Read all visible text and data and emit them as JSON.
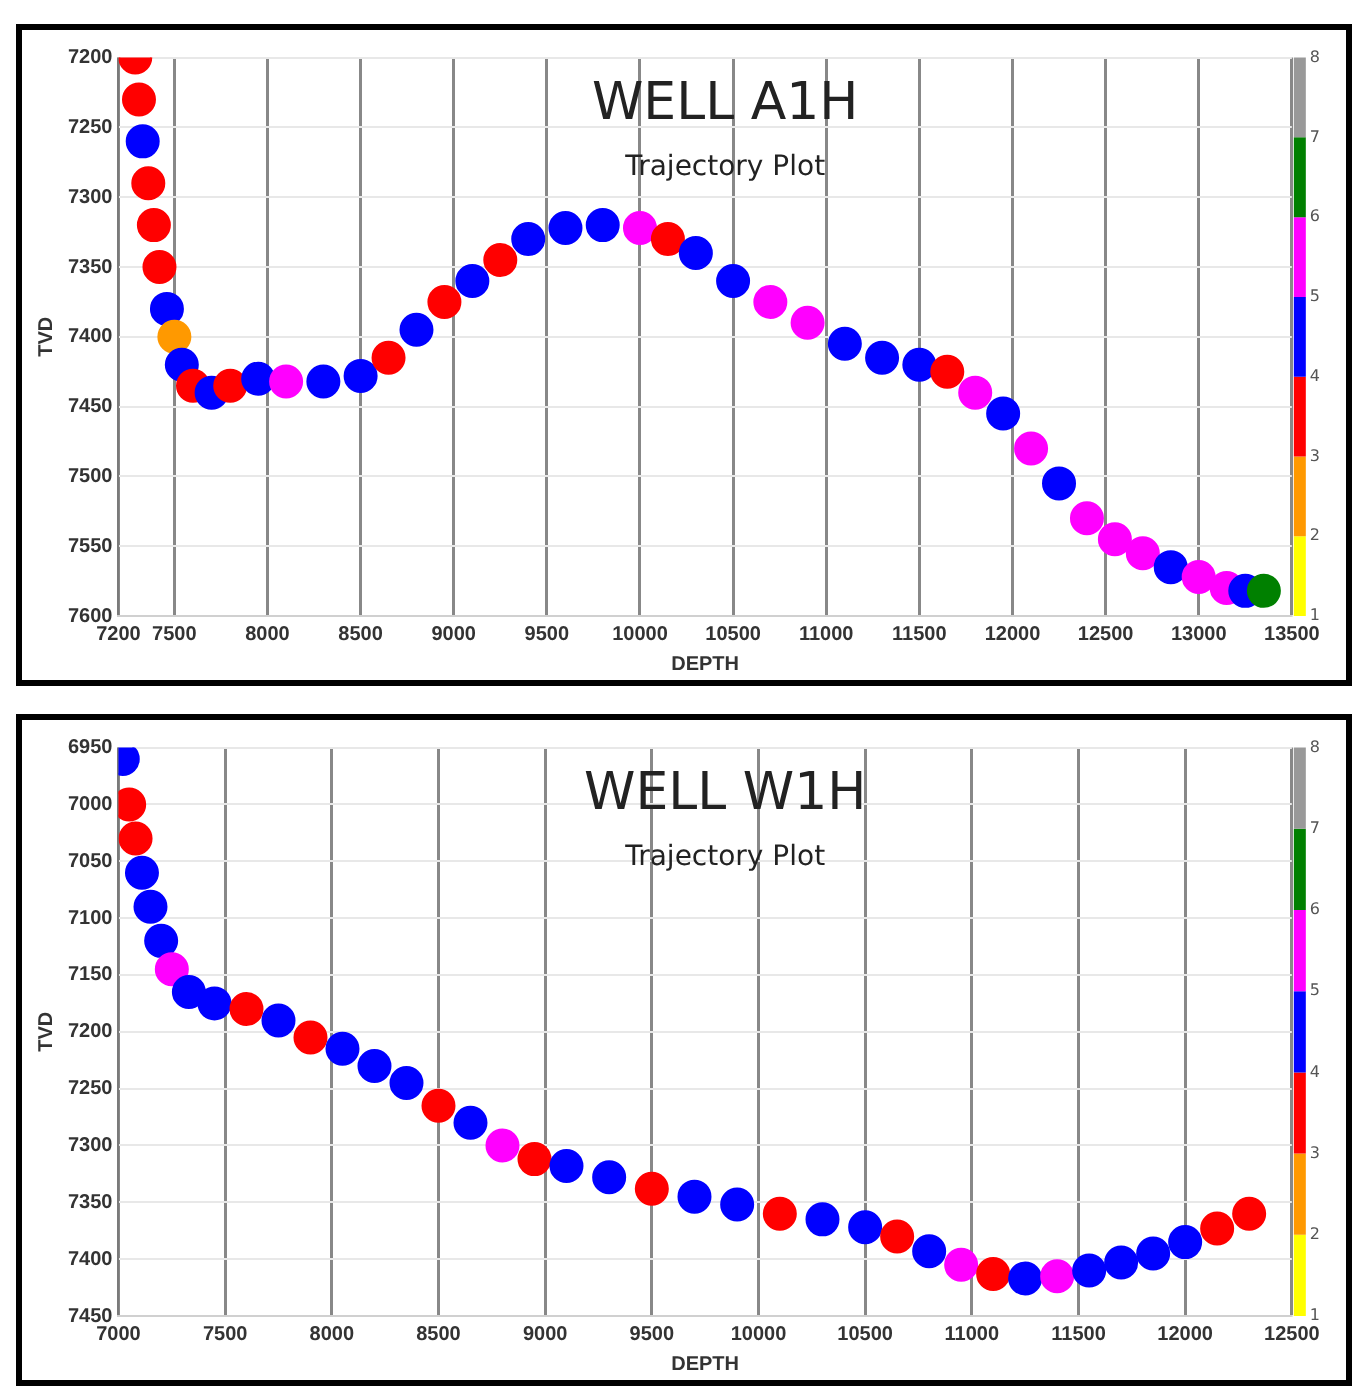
{
  "chart_data": [
    {
      "type": "scatter",
      "title": "WELL A1H",
      "subtitle": "Trajectory Plot",
      "xlabel": "DEPTH",
      "ylabel": "TVD",
      "marker": "circle",
      "grid": true,
      "legend": false,
      "xlim": [
        7200,
        13500
      ],
      "xticks": [
        7200,
        7500,
        8000,
        8500,
        9000,
        9500,
        10000,
        10500,
        11000,
        11500,
        12000,
        12500,
        13000,
        13500
      ],
      "ylim": [
        7600,
        7200
      ],
      "yticks": [
        7200,
        7250,
        7300,
        7350,
        7400,
        7450,
        7500,
        7550,
        7600
      ],
      "clim": [
        1,
        8
      ],
      "cticks": [
        1,
        2,
        3,
        4,
        5,
        6,
        7,
        8
      ],
      "x": [
        7290,
        7310,
        7330,
        7360,
        7390,
        7420,
        7460,
        7500,
        7540,
        7600,
        7700,
        7800,
        7950,
        8100,
        8300,
        8500,
        8650,
        8800,
        8950,
        9100,
        9250,
        9400,
        9600,
        9800,
        10000,
        10150,
        10300,
        10500,
        10700,
        10900,
        11100,
        11300,
        11500,
        11650,
        11800,
        11950,
        12100,
        12250,
        12400,
        12550,
        12700,
        12850,
        13000,
        13150,
        13250,
        13350
      ],
      "values": [
        7200,
        7230,
        7260,
        7290,
        7320,
        7350,
        7380,
        7400,
        7420,
        7435,
        7440,
        7435,
        7430,
        7432,
        7432,
        7428,
        7415,
        7395,
        7375,
        7360,
        7345,
        7330,
        7322,
        7320,
        7322,
        7330,
        7340,
        7360,
        7375,
        7390,
        7405,
        7415,
        7420,
        7425,
        7440,
        7455,
        7480,
        7505,
        7530,
        7545,
        7555,
        7565,
        7572,
        7580,
        7582,
        7582
      ],
      "colors": [
        "#ff0000",
        "#ff0000",
        "#0000ff",
        "#ff0000",
        "#ff0000",
        "#ff0000",
        "#0000ff",
        "#ff9900",
        "#0000ff",
        "#ff0000",
        "#0000ff",
        "#ff0000",
        "#0000ff",
        "#ff00ff",
        "#0000ff",
        "#0000ff",
        "#ff0000",
        "#0000ff",
        "#ff0000",
        "#0000ff",
        "#ff0000",
        "#0000ff",
        "#0000ff",
        "#0000ff",
        "#ff00ff",
        "#ff0000",
        "#0000ff",
        "#0000ff",
        "#ff00ff",
        "#ff00ff",
        "#0000ff",
        "#0000ff",
        "#0000ff",
        "#ff0000",
        "#ff00ff",
        "#0000ff",
        "#ff00ff",
        "#0000ff",
        "#ff00ff",
        "#ff00ff",
        "#ff00ff",
        "#0000ff",
        "#ff00ff",
        "#ff00ff",
        "#0000ff",
        "#008000"
      ]
    },
    {
      "type": "scatter",
      "title": "WELL W1H",
      "subtitle": "Trajectory Plot",
      "xlabel": "DEPTH",
      "ylabel": "TVD",
      "marker": "circle",
      "grid": true,
      "legend": false,
      "xlim": [
        7000,
        12500
      ],
      "xticks": [
        7000,
        7500,
        8000,
        8500,
        9000,
        9500,
        10000,
        10500,
        11000,
        11500,
        12000,
        12500
      ],
      "ylim": [
        7450,
        6950
      ],
      "yticks": [
        6950,
        7000,
        7050,
        7100,
        7150,
        7200,
        7250,
        7300,
        7350,
        7400,
        7450
      ],
      "clim": [
        1,
        8
      ],
      "cticks": [
        1,
        2,
        3,
        4,
        5,
        6,
        7,
        8
      ],
      "x": [
        7020,
        7050,
        7080,
        7110,
        7150,
        7200,
        7250,
        7330,
        7450,
        7600,
        7750,
        7900,
        8050,
        8200,
        8350,
        8500,
        8650,
        8800,
        8950,
        9100,
        9300,
        9500,
        9700,
        9900,
        10100,
        10300,
        10500,
        10650,
        10800,
        10950,
        11100,
        11250,
        11400,
        11550,
        11700,
        11850,
        12000,
        12150,
        12300
      ],
      "values": [
        6960,
        7000,
        7030,
        7060,
        7090,
        7120,
        7145,
        7165,
        7175,
        7180,
        7190,
        7205,
        7215,
        7230,
        7245,
        7265,
        7280,
        7300,
        7312,
        7318,
        7328,
        7338,
        7345,
        7352,
        7360,
        7365,
        7372,
        7380,
        7393,
        7405,
        7413,
        7417,
        7415,
        7410,
        7403,
        7395,
        7385,
        7373,
        7360
      ],
      "colors": [
        "#0000ff",
        "#ff0000",
        "#ff0000",
        "#0000ff",
        "#0000ff",
        "#0000ff",
        "#ff00ff",
        "#0000ff",
        "#0000ff",
        "#ff0000",
        "#0000ff",
        "#ff0000",
        "#0000ff",
        "#0000ff",
        "#0000ff",
        "#ff0000",
        "#0000ff",
        "#ff00ff",
        "#ff0000",
        "#0000ff",
        "#0000ff",
        "#ff0000",
        "#0000ff",
        "#0000ff",
        "#ff0000",
        "#0000ff",
        "#0000ff",
        "#ff0000",
        "#0000ff",
        "#ff00ff",
        "#ff0000",
        "#0000ff",
        "#ff00ff",
        "#0000ff",
        "#0000ff",
        "#0000ff",
        "#0000ff",
        "#ff0000",
        "#ff0000"
      ]
    }
  ]
}
